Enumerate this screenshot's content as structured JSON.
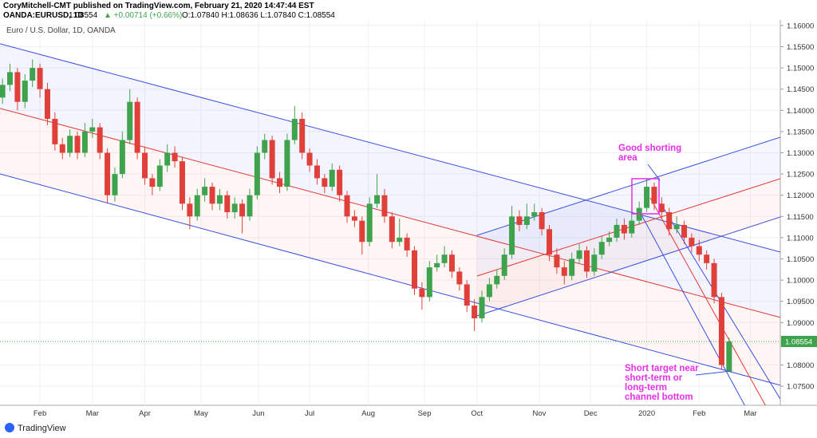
{
  "header": {
    "publisher": "CoryMitchell-CMT published on TradingView.com, February 21, 2020 14:47:44 EST",
    "symbol": "OANDA:EURUSD, 1D",
    "last": "1.08554",
    "change": "▲ +0.00714 (+0.66%)",
    "ohlc": "O:1.07840 H:1.08636 L:1.07840 C:1.08554"
  },
  "footer": {
    "brand": "TradingView"
  },
  "chart_data": {
    "type": "candlestick",
    "title": "Euro / U.S. Dollar, 1D, OANDA",
    "up_color": "#3fa34d",
    "down_color": "#e0403a",
    "xlim": [
      -16,
      296.5
    ],
    "ylim": [
      1.0705,
      1.1613
    ],
    "xticks": [
      {
        "value": 0,
        "label": "Feb"
      },
      {
        "value": 21,
        "label": "Mar"
      },
      {
        "value": 42,
        "label": "Apr"
      },
      {
        "value": 64.5,
        "label": "May"
      },
      {
        "value": 87.5,
        "label": "Jun"
      },
      {
        "value": 108,
        "label": "Jul"
      },
      {
        "value": 131.5,
        "label": "Aug"
      },
      {
        "value": 154,
        "label": "Sep"
      },
      {
        "value": 175,
        "label": "Oct"
      },
      {
        "value": 200,
        "label": "Nov"
      },
      {
        "value": 220.5,
        "label": "Dec"
      },
      {
        "value": 243,
        "label": "2020"
      },
      {
        "value": 264,
        "label": "Feb"
      },
      {
        "value": 284.5,
        "label": "Mar"
      }
    ],
    "yticks": [
      {
        "value": 1.075,
        "label": "1.07500"
      },
      {
        "value": 1.08,
        "label": "1.08000"
      },
      {
        "value": 1.085,
        "label": "1.08500"
      },
      {
        "value": 1.09,
        "label": "1.09000"
      },
      {
        "value": 1.095,
        "label": "1.09500"
      },
      {
        "value": 1.1,
        "label": "1.10000"
      },
      {
        "value": 1.105,
        "label": "1.10500"
      },
      {
        "value": 1.11,
        "label": "1.11000"
      },
      {
        "value": 1.115,
        "label": "1.11500"
      },
      {
        "value": 1.12,
        "label": "1.12000"
      },
      {
        "value": 1.125,
        "label": "1.12500"
      },
      {
        "value": 1.13,
        "label": "1.13000"
      },
      {
        "value": 1.135,
        "label": "1.13500"
      },
      {
        "value": 1.14,
        "label": "1.14000"
      },
      {
        "value": 1.145,
        "label": "1.14500"
      },
      {
        "value": 1.15,
        "label": "1.15000"
      },
      {
        "value": 1.155,
        "label": "1.15500"
      },
      {
        "value": 1.16,
        "label": "1.16000"
      }
    ],
    "grid": true,
    "last_price": {
      "value": 1.08554,
      "label": "1.08554",
      "color": "#3fa34d"
    },
    "x": [
      -15,
      -12,
      -9,
      -6,
      -3,
      0,
      3,
      6,
      9,
      12,
      15,
      18,
      21,
      24,
      27,
      30,
      33,
      36,
      39,
      42,
      45,
      48,
      51,
      54,
      57,
      60,
      63,
      66,
      69,
      72,
      75,
      78,
      81,
      84,
      87,
      90,
      93,
      96,
      99,
      102,
      105,
      108,
      111,
      114,
      117,
      120,
      123,
      126,
      129,
      132,
      135,
      138,
      141,
      144,
      147,
      150,
      153,
      156,
      159,
      162,
      165,
      168,
      171,
      174,
      177,
      180,
      183,
      186,
      189,
      192,
      195,
      198,
      201,
      204,
      207,
      210,
      213,
      216,
      219,
      222,
      225,
      228,
      231,
      234,
      237,
      240,
      243,
      246,
      249,
      252,
      255,
      258,
      261,
      264,
      267,
      270,
      273,
      276
    ],
    "candles": [
      [
        1.143,
        1.1475,
        1.1415,
        1.146
      ],
      [
        1.146,
        1.151,
        1.1445,
        1.149
      ],
      [
        1.149,
        1.15,
        1.14,
        1.142
      ],
      [
        1.142,
        1.1485,
        1.1405,
        1.147
      ],
      [
        1.147,
        1.152,
        1.1455,
        1.15
      ],
      [
        1.15,
        1.151,
        1.143,
        1.145
      ],
      [
        1.145,
        1.1465,
        1.1365,
        1.138
      ],
      [
        1.138,
        1.1395,
        1.1305,
        1.132
      ],
      [
        1.132,
        1.1335,
        1.1285,
        1.13
      ],
      [
        1.13,
        1.1355,
        1.129,
        1.134
      ],
      [
        1.134,
        1.135,
        1.1285,
        1.13
      ],
      [
        1.13,
        1.137,
        1.129,
        1.135
      ],
      [
        1.135,
        1.138,
        1.1335,
        1.136
      ],
      [
        1.136,
        1.137,
        1.1285,
        1.13
      ],
      [
        1.13,
        1.131,
        1.118,
        1.12
      ],
      [
        1.12,
        1.1265,
        1.1185,
        1.125
      ],
      [
        1.125,
        1.135,
        1.124,
        1.133
      ],
      [
        1.133,
        1.145,
        1.132,
        1.142
      ],
      [
        1.142,
        1.143,
        1.1285,
        1.13
      ],
      [
        1.13,
        1.1315,
        1.1225,
        1.124
      ],
      [
        1.124,
        1.125,
        1.12,
        1.122
      ],
      [
        1.122,
        1.1285,
        1.121,
        1.127
      ],
      [
        1.127,
        1.132,
        1.1255,
        1.13
      ],
      [
        1.13,
        1.1315,
        1.1265,
        1.128
      ],
      [
        1.128,
        1.129,
        1.1165,
        1.118
      ],
      [
        1.118,
        1.1195,
        1.112,
        1.115
      ],
      [
        1.115,
        1.1215,
        1.114,
        1.12
      ],
      [
        1.12,
        1.124,
        1.1185,
        1.122
      ],
      [
        1.122,
        1.123,
        1.1165,
        1.118
      ],
      [
        1.118,
        1.1215,
        1.1165,
        1.12
      ],
      [
        1.12,
        1.121,
        1.1145,
        1.116
      ],
      [
        1.116,
        1.1195,
        1.1145,
        1.118
      ],
      [
        1.118,
        1.119,
        1.111,
        1.115
      ],
      [
        1.115,
        1.1215,
        1.114,
        1.12
      ],
      [
        1.12,
        1.1315,
        1.119,
        1.13
      ],
      [
        1.13,
        1.1345,
        1.1285,
        1.133
      ],
      [
        1.133,
        1.134,
        1.1225,
        1.124
      ],
      [
        1.124,
        1.1255,
        1.1205,
        1.122
      ],
      [
        1.122,
        1.1345,
        1.121,
        1.133
      ],
      [
        1.133,
        1.141,
        1.132,
        1.138
      ],
      [
        1.138,
        1.1395,
        1.1285,
        1.13
      ],
      [
        1.13,
        1.131,
        1.1255,
        1.127
      ],
      [
        1.127,
        1.1285,
        1.1225,
        1.124
      ],
      [
        1.124,
        1.125,
        1.1205,
        1.122
      ],
      [
        1.122,
        1.1275,
        1.121,
        1.126
      ],
      [
        1.126,
        1.127,
        1.1185,
        1.12
      ],
      [
        1.12,
        1.121,
        1.1135,
        1.115
      ],
      [
        1.115,
        1.1165,
        1.1125,
        1.114
      ],
      [
        1.114,
        1.115,
        1.106,
        1.109
      ],
      [
        1.109,
        1.1195,
        1.108,
        1.118
      ],
      [
        1.118,
        1.125,
        1.117,
        1.12
      ],
      [
        1.12,
        1.1215,
        1.1135,
        1.115
      ],
      [
        1.115,
        1.116,
        1.1075,
        1.109
      ],
      [
        1.109,
        1.1145,
        1.108,
        1.11
      ],
      [
        1.11,
        1.111,
        1.1055,
        1.107
      ],
      [
        1.107,
        1.108,
        1.0965,
        1.098
      ],
      [
        1.098,
        1.0995,
        1.093,
        1.096
      ],
      [
        1.096,
        1.1045,
        1.095,
        1.103
      ],
      [
        1.103,
        1.106,
        1.102,
        1.104
      ],
      [
        1.104,
        1.108,
        1.103,
        1.106
      ],
      [
        1.106,
        1.107,
        1.1005,
        1.102
      ],
      [
        1.102,
        1.103,
        1.0975,
        1.099
      ],
      [
        1.099,
        1.1,
        1.0925,
        1.094
      ],
      [
        1.094,
        1.0955,
        1.088,
        1.091
      ],
      [
        1.091,
        1.0975,
        1.09,
        1.096
      ],
      [
        1.096,
        1.1005,
        1.095,
        1.099
      ],
      [
        1.099,
        1.1025,
        1.098,
        1.101
      ],
      [
        1.101,
        1.1075,
        1.1,
        1.106
      ],
      [
        1.106,
        1.1175,
        1.105,
        1.115
      ],
      [
        1.115,
        1.1165,
        1.1115,
        1.113
      ],
      [
        1.113,
        1.118,
        1.112,
        1.115
      ],
      [
        1.115,
        1.118,
        1.114,
        1.116
      ],
      [
        1.116,
        1.117,
        1.1105,
        1.112
      ],
      [
        1.112,
        1.113,
        1.1045,
        1.106
      ],
      [
        1.106,
        1.1075,
        1.1015,
        1.103
      ],
      [
        1.103,
        1.1045,
        1.099,
        1.101
      ],
      [
        1.101,
        1.1065,
        1.1,
        1.105
      ],
      [
        1.105,
        1.1085,
        1.104,
        1.107
      ],
      [
        1.107,
        1.108,
        1.1005,
        1.102
      ],
      [
        1.102,
        1.1075,
        1.101,
        1.106
      ],
      [
        1.106,
        1.1105,
        1.105,
        1.109
      ],
      [
        1.109,
        1.1115,
        1.108,
        1.11
      ],
      [
        1.11,
        1.1145,
        1.109,
        1.113
      ],
      [
        1.113,
        1.1145,
        1.1095,
        1.111
      ],
      [
        1.111,
        1.116,
        1.11,
        1.114
      ],
      [
        1.114,
        1.1185,
        1.113,
        1.117
      ],
      [
        1.117,
        1.124,
        1.116,
        1.122
      ],
      [
        1.122,
        1.123,
        1.1165,
        1.118
      ],
      [
        1.118,
        1.1195,
        1.1145,
        1.116
      ],
      [
        1.116,
        1.117,
        1.1105,
        1.112
      ],
      [
        1.112,
        1.115,
        1.111,
        1.113
      ],
      [
        1.113,
        1.114,
        1.1085,
        1.11
      ],
      [
        1.11,
        1.111,
        1.1065,
        1.108
      ],
      [
        1.108,
        1.1095,
        1.1045,
        1.106
      ],
      [
        1.106,
        1.107,
        1.1025,
        1.104
      ],
      [
        1.104,
        1.105,
        1.0945,
        1.096
      ],
      [
        1.096,
        1.097,
        1.079,
        1.08
      ],
      [
        1.0784,
        1.0864,
        1.0784,
        1.0855
      ]
    ],
    "drawings": [
      {
        "x": [
          -16,
          296.5
        ],
        "y": [
          1.15568,
          1.10661
        ],
        "color": "#3a4fe0",
        "fill": "rgba(90,100,230,0.07)"
      },
      {
        "x": [
          -16,
          296.5
        ],
        "y": [
          1.14045,
          1.09119
        ],
        "color": "#e53935",
        "fill": "rgba(240,110,110,0.07)"
      },
      {
        "x": [
          -16,
          296.5
        ],
        "y": [
          1.12503,
          1.07521
        ],
        "color": "#3a4fe0"
      },
      {
        "x": [
          175,
          296.5
        ],
        "y": [
          1.11054,
          1.13367
        ],
        "color": "#3a4fe0",
        "fill": "rgba(90,100,230,0.06)"
      },
      {
        "x": [
          175,
          296.5
        ],
        "y": [
          1.10095,
          1.12389
        ],
        "color": "#e53935",
        "fill": "rgba(240,110,110,0.06)"
      },
      {
        "x": [
          175,
          296.5
        ],
        "y": [
          1.09155,
          1.11487
        ],
        "color": "#3a4fe0"
      },
      {
        "x": [
          248.6,
          296.5
        ],
        "y": [
          1.11807,
          1.07199
        ],
        "color": "#3a4fe0"
      },
      {
        "x": [
          244.4,
          291.4
        ],
        "y": [
          1.11939,
          1.06957
        ],
        "color": "#e53935"
      },
      {
        "x": [
          239.6,
          284.3
        ],
        "y": [
          1.11676,
          1.06825
        ],
        "color": "#3a4fe0"
      }
    ],
    "annotations": [
      {
        "lines": [
          "Good shorting",
          "area"
        ],
        "color": "#e62ee6"
      },
      {
        "lines": [
          "Short target near",
          "short-term or",
          "long-term",
          "channel bottom"
        ],
        "color": "#e62ee6"
      }
    ]
  }
}
